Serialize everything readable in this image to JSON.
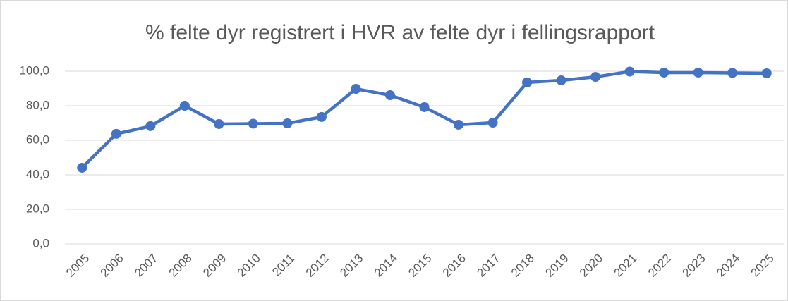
{
  "chart_data": {
    "type": "line",
    "title": "% felte dyr registrert i HVR av felte dyr i fellingsrapport",
    "categories": [
      "2005",
      "2006",
      "2007",
      "2008",
      "2009",
      "2010",
      "2011",
      "2012",
      "2013",
      "2014",
      "2015",
      "2016",
      "2017",
      "2018",
      "2019",
      "2020",
      "2021",
      "2022",
      "2023",
      "2024",
      "2025"
    ],
    "series": [
      {
        "color": "#4472c4",
        "values": [
          44.1,
          63.7,
          68.2,
          80.0,
          69.4,
          69.6,
          69.8,
          73.5,
          89.8,
          86.1,
          79.2,
          69.0,
          70.2,
          93.5,
          94.7,
          96.7,
          99.8,
          99.2,
          99.2,
          99.0,
          98.8
        ]
      }
    ],
    "ylim": [
      0,
      100
    ],
    "yticks": [
      {
        "value": 0,
        "label": "0,0"
      },
      {
        "value": 20,
        "label": "20,0"
      },
      {
        "value": 40,
        "label": "40,0"
      },
      {
        "value": 60,
        "label": "60,0"
      },
      {
        "value": 80,
        "label": "80,0"
      },
      {
        "value": 100,
        "label": "100,0"
      }
    ],
    "grid": true
  }
}
